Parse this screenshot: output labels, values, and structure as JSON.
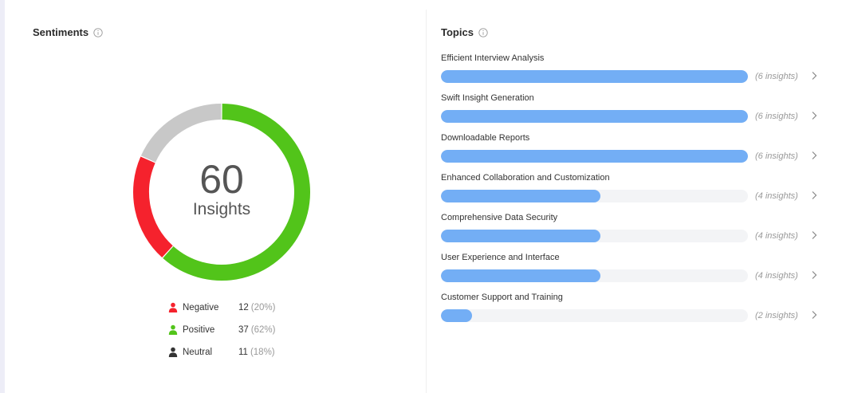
{
  "sentiments": {
    "title": "Sentiments",
    "total": "60",
    "caption": "Insights",
    "segments": [
      {
        "key": "positive",
        "value": 37,
        "color": "#52c41a"
      },
      {
        "key": "negative",
        "value": 12,
        "color": "#f5222d"
      },
      {
        "key": "neutral",
        "value": 11,
        "color": "#c8c8c8"
      }
    ],
    "legend": [
      {
        "label": "Negative",
        "count": "12",
        "pct": "(20%)",
        "icon_color": "#f5222d",
        "icon": "person-icon"
      },
      {
        "label": "Positive",
        "count": "37",
        "pct": "(62%)",
        "icon_color": "#52c41a",
        "icon": "person-icon"
      },
      {
        "label": "Neutral",
        "count": "11",
        "pct": "(18%)",
        "icon_color": "#333333",
        "icon": "person-icon"
      }
    ]
  },
  "topics": {
    "title": "Topics",
    "items": [
      {
        "name": "Efficient Interview Analysis",
        "insights": "(6 insights)",
        "level": 1.0
      },
      {
        "name": "Swift Insight Generation",
        "insights": "(6 insights)",
        "level": 1.0
      },
      {
        "name": "Downloadable Reports",
        "insights": "(6 insights)",
        "level": 1.0
      },
      {
        "name": "Enhanced Collaboration and Customization",
        "insights": "(4 insights)",
        "level": 0.52
      },
      {
        "name": "Comprehensive Data Security",
        "insights": "(4 insights)",
        "level": 0.52
      },
      {
        "name": "User Experience and Interface",
        "insights": "(4 insights)",
        "level": 0.52
      },
      {
        "name": "Customer Support and Training",
        "insights": "(2 insights)",
        "level": 0.1
      }
    ]
  },
  "colors": {
    "bar_fill": "#73aef5",
    "bar_track": "#f3f4f6"
  }
}
